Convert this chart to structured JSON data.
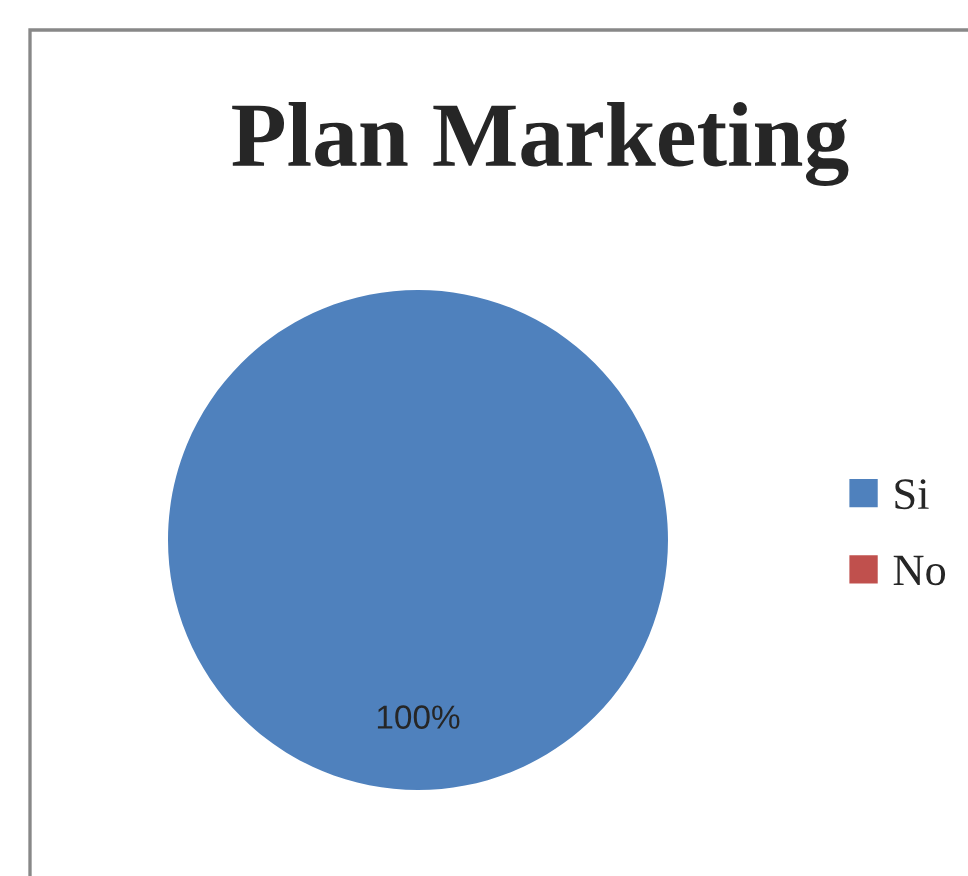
{
  "chart_data": {
    "type": "pie",
    "title": "Plan Marketing",
    "categories": [
      "Si",
      "No"
    ],
    "values": [
      100,
      0
    ],
    "colors": [
      "#4f81bd",
      "#c0504d"
    ],
    "value_labels": [
      "100%",
      null
    ],
    "legend": "right"
  }
}
